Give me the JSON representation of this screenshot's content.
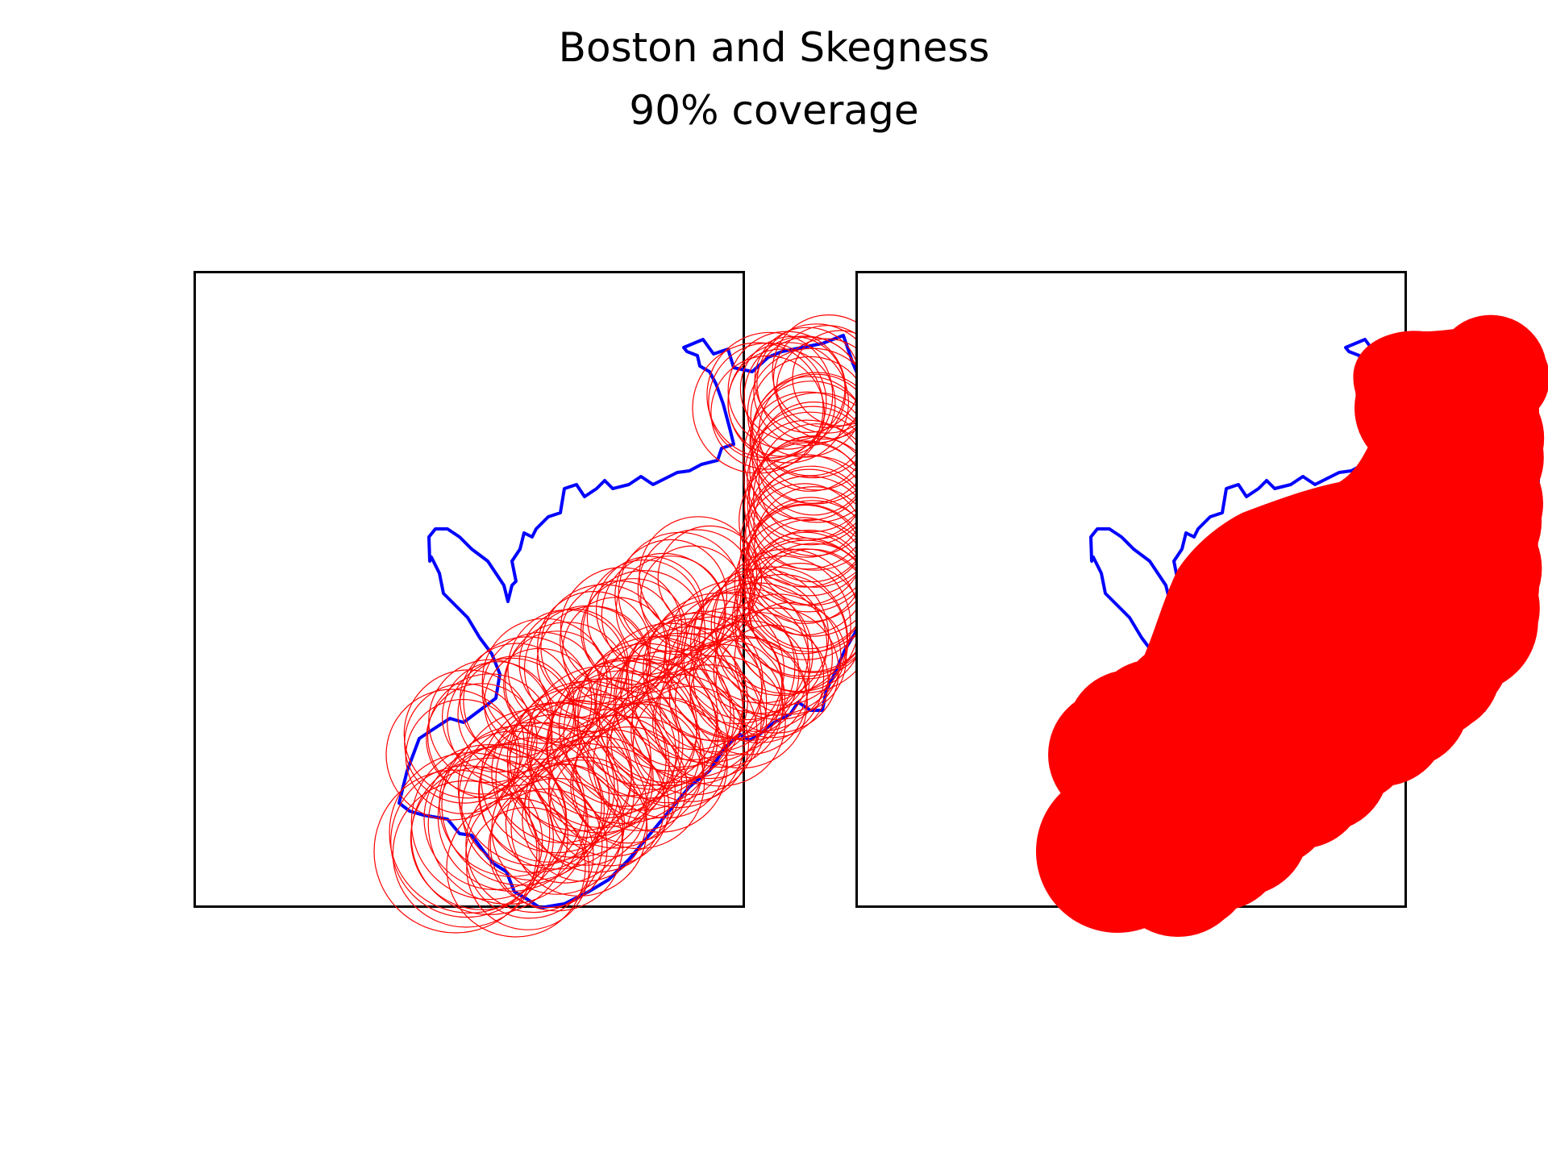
{
  "title": "Boston and Skegness",
  "subtitle": "90% coverage",
  "colors": {
    "boundary": "#0000ff",
    "coverage": "#ff0000",
    "frame": "#000000",
    "background": "#ffffff"
  },
  "panels": [
    {
      "id": "circles-outline",
      "coverage_style": "outlined circles"
    },
    {
      "id": "circles-filled",
      "coverage_style": "filled circles"
    }
  ]
}
